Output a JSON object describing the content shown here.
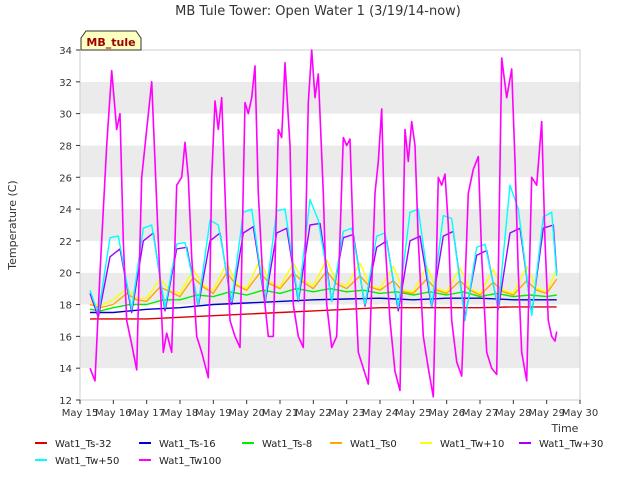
{
  "chart_data": {
    "type": "line",
    "title": "MB Tule Tower: Open Water 1 (3/19/14-now)",
    "xlabel": "Time",
    "ylabel": "Temperature (C)",
    "xlim": [
      15,
      30
    ],
    "ylim": [
      12,
      34
    ],
    "xticks": [
      15,
      16,
      17,
      18,
      19,
      20,
      21,
      22,
      23,
      24,
      25,
      26,
      27,
      28,
      29,
      30
    ],
    "xtick_labels": [
      "May 15",
      "May 16",
      "May 17",
      "May 18",
      "May 19",
      "May 20",
      "May 21",
      "May 22",
      "May 23",
      "May 24",
      "May 25",
      "May 26",
      "May 27",
      "May 28",
      "May 29",
      "May 30"
    ],
    "yticks": [
      12,
      14,
      16,
      18,
      20,
      22,
      24,
      26,
      28,
      30,
      32,
      34
    ],
    "ytick_labels": [
      "12",
      "14",
      "16",
      "18",
      "20",
      "22",
      "24",
      "26",
      "28",
      "30",
      "32",
      "34"
    ],
    "grid": "horizontal bands",
    "station_label": "MB_tule",
    "legend_position": "bottom",
    "series": [
      {
        "name": "Wat1_Ts-32",
        "color": "#dd0000",
        "x": [
          15.3,
          16,
          17,
          18,
          19,
          20,
          21,
          22,
          23,
          24,
          25,
          26,
          27,
          28,
          29,
          29.3
        ],
        "values": [
          17.1,
          17.1,
          17.1,
          17.2,
          17.3,
          17.4,
          17.5,
          17.6,
          17.7,
          17.8,
          17.8,
          17.8,
          17.8,
          17.85,
          17.85,
          17.85
        ]
      },
      {
        "name": "Wat1_Ts-16",
        "color": "#0000cc",
        "x": [
          15.3,
          16,
          17,
          18,
          19,
          20,
          21,
          22,
          23,
          24,
          25,
          26,
          27,
          28,
          29,
          29.3
        ],
        "values": [
          17.5,
          17.5,
          17.7,
          17.8,
          18.0,
          18.1,
          18.2,
          18.3,
          18.35,
          18.4,
          18.3,
          18.4,
          18.4,
          18.3,
          18.3,
          18.3
        ]
      },
      {
        "name": "Wat1_Ts-8",
        "color": "#00ee00",
        "x": [
          15.3,
          15.6,
          16,
          16.5,
          17,
          17.5,
          18,
          18.5,
          19,
          19.5,
          20,
          20.5,
          21,
          21.5,
          22,
          22.5,
          23,
          23.5,
          24,
          24.5,
          25,
          25.5,
          26,
          26.5,
          27,
          27.5,
          28,
          28.5,
          29,
          29.3
        ],
        "values": [
          17.7,
          17.6,
          17.8,
          18.0,
          18.0,
          18.3,
          18.3,
          18.6,
          18.5,
          18.8,
          18.6,
          18.9,
          18.7,
          19.0,
          18.8,
          19.0,
          18.8,
          18.9,
          18.7,
          18.8,
          18.6,
          18.8,
          18.6,
          18.8,
          18.5,
          18.7,
          18.5,
          18.6,
          18.5,
          18.6
        ]
      },
      {
        "name": "Wat1_Ts0",
        "color": "#ffa500",
        "x": [
          15.3,
          15.6,
          16,
          16.4,
          16.7,
          17,
          17.4,
          17.7,
          18,
          18.4,
          18.7,
          19,
          19.4,
          19.7,
          20,
          20.4,
          20.7,
          21,
          21.4,
          21.7,
          22,
          22.4,
          22.7,
          23,
          23.4,
          23.7,
          24,
          24.4,
          24.7,
          25,
          25.4,
          25.7,
          26,
          26.4,
          26.7,
          27,
          27.4,
          27.7,
          28,
          28.4,
          28.7,
          29,
          29.3
        ],
        "values": [
          18.0,
          17.8,
          18.0,
          18.7,
          18.3,
          18.2,
          19.1,
          18.8,
          18.5,
          19.7,
          19.1,
          18.7,
          20.0,
          19.2,
          18.9,
          20.0,
          19.3,
          19.0,
          20.0,
          19.4,
          19.0,
          20.1,
          19.3,
          19.0,
          19.8,
          19.1,
          18.9,
          19.5,
          18.8,
          18.7,
          19.6,
          18.9,
          18.7,
          19.5,
          18.9,
          18.6,
          19.4,
          18.8,
          18.6,
          19.5,
          18.9,
          18.7,
          19.6
        ]
      },
      {
        "name": "Wat1_Tw+10",
        "color": "#ffff00",
        "x": [
          15.3,
          15.6,
          16,
          16.4,
          16.7,
          17,
          17.4,
          17.7,
          18,
          18.4,
          18.7,
          19,
          19.4,
          19.7,
          20,
          20.4,
          20.7,
          21,
          21.4,
          21.7,
          22,
          22.4,
          22.7,
          23,
          23.4,
          23.7,
          24,
          24.4,
          24.7,
          25,
          25.4,
          25.7,
          26,
          26.4,
          26.7,
          27,
          27.4,
          27.7,
          28,
          28.4,
          28.7,
          29,
          29.3
        ],
        "values": [
          18.2,
          17.9,
          18.3,
          19.0,
          18.4,
          18.4,
          19.6,
          18.9,
          18.7,
          20.2,
          19.2,
          18.9,
          20.6,
          19.3,
          19.0,
          20.8,
          19.4,
          19.1,
          20.6,
          19.5,
          19.2,
          20.8,
          19.4,
          19.2,
          20.6,
          19.2,
          19.0,
          20.4,
          18.9,
          18.8,
          20.4,
          19.0,
          18.8,
          20.3,
          19.0,
          18.7,
          20.2,
          18.9,
          18.7,
          20.4,
          19.0,
          18.8,
          20.2
        ]
      },
      {
        "name": "Wat1_Tw+30",
        "color": "#a000ff",
        "x": [
          15.3,
          15.55,
          15.9,
          16.2,
          16.55,
          16.9,
          17.2,
          17.55,
          17.9,
          18.2,
          18.55,
          18.9,
          19.2,
          19.55,
          19.9,
          20.2,
          20.55,
          20.9,
          21.2,
          21.55,
          21.9,
          22.2,
          22.55,
          22.9,
          23.2,
          23.55,
          23.9,
          24.2,
          24.55,
          24.9,
          25.2,
          25.55,
          25.9,
          26.2,
          26.55,
          26.9,
          27.2,
          27.55,
          27.9,
          28.2,
          28.55,
          28.9,
          29.2,
          29.3
        ],
        "values": [
          18.7,
          17.2,
          21.0,
          21.5,
          17.5,
          22.0,
          22.5,
          17.6,
          21.5,
          21.6,
          17.9,
          22.0,
          22.5,
          18.0,
          22.5,
          22.9,
          18.1,
          22.5,
          22.8,
          18.2,
          23.0,
          23.1,
          18.2,
          22.2,
          22.4,
          17.9,
          21.6,
          22.0,
          17.6,
          22.0,
          22.3,
          17.8,
          22.3,
          22.6,
          17.2,
          21.1,
          21.4,
          17.7,
          22.5,
          22.8,
          17.4,
          22.8,
          23.0,
          20.0
        ]
      },
      {
        "name": "Wat1_Tw+50",
        "color": "#00ffff",
        "x": [
          15.3,
          15.55,
          15.9,
          16.15,
          16.55,
          16.9,
          17.15,
          17.55,
          17.9,
          18.15,
          18.55,
          18.9,
          19.15,
          19.55,
          19.9,
          20.15,
          20.55,
          20.9,
          21.15,
          21.55,
          21.9,
          22.15,
          22.55,
          22.9,
          23.15,
          23.55,
          23.9,
          24.15,
          24.55,
          24.9,
          25.15,
          25.55,
          25.9,
          26.15,
          26.55,
          26.9,
          27.15,
          27.55,
          27.9,
          28.15,
          28.55,
          28.9,
          29.15,
          29.3
        ],
        "values": [
          18.9,
          17.4,
          22.2,
          22.3,
          17.7,
          22.8,
          23.0,
          17.8,
          21.8,
          21.9,
          18.0,
          23.3,
          23.0,
          18.2,
          23.8,
          24.0,
          18.2,
          23.9,
          24.0,
          18.3,
          24.6,
          23.3,
          18.2,
          22.6,
          22.8,
          18.0,
          22.3,
          22.5,
          17.8,
          23.8,
          24.0,
          17.9,
          23.6,
          23.4,
          17.0,
          21.6,
          21.8,
          17.8,
          25.5,
          24.0,
          17.3,
          23.5,
          23.8,
          19.8
        ]
      },
      {
        "name": "Wat1_Tw100",
        "color": "#ff00ff",
        "x": [
          15.3,
          15.45,
          15.6,
          15.8,
          15.95,
          16.1,
          16.2,
          16.3,
          16.4,
          16.55,
          16.7,
          16.85,
          17.0,
          17.15,
          17.25,
          17.35,
          17.5,
          17.6,
          17.75,
          17.9,
          18.05,
          18.15,
          18.25,
          18.35,
          18.5,
          18.65,
          18.85,
          18.95,
          19.05,
          19.15,
          19.25,
          19.4,
          19.5,
          19.65,
          19.8,
          19.95,
          20.05,
          20.15,
          20.25,
          20.35,
          20.5,
          20.65,
          20.8,
          20.95,
          21.05,
          21.15,
          21.3,
          21.4,
          21.55,
          21.7,
          21.85,
          21.95,
          22.05,
          22.15,
          22.3,
          22.4,
          22.55,
          22.7,
          22.9,
          23.0,
          23.1,
          23.2,
          23.35,
          23.5,
          23.65,
          23.85,
          23.95,
          24.05,
          24.15,
          24.3,
          24.45,
          24.6,
          24.75,
          24.85,
          24.95,
          25.05,
          25.15,
          25.3,
          25.45,
          25.6,
          25.75,
          25.85,
          25.95,
          26.05,
          26.15,
          26.3,
          26.45,
          26.65,
          26.8,
          26.95,
          27.05,
          27.2,
          27.35,
          27.5,
          27.65,
          27.8,
          27.95,
          28.05,
          28.15,
          28.25,
          28.4,
          28.55,
          28.7,
          28.85,
          28.95,
          29.05,
          29.15,
          29.25,
          29.3
        ],
        "values": [
          14.0,
          13.2,
          20.0,
          28.0,
          32.7,
          29.0,
          30.0,
          22.0,
          17.0,
          15.5,
          13.9,
          26.0,
          29.0,
          32.0,
          27.0,
          22.0,
          15.0,
          16.2,
          15.0,
          25.5,
          26.0,
          28.2,
          26.0,
          21.0,
          16.0,
          15.0,
          13.4,
          26.0,
          30.8,
          29.0,
          31.0,
          22.0,
          17.0,
          16.0,
          15.3,
          30.7,
          30.0,
          31.0,
          33.0,
          25.0,
          19.0,
          16.0,
          16.0,
          29.0,
          28.5,
          33.2,
          28.0,
          18.0,
          16.0,
          15.3,
          30.7,
          34.0,
          31.0,
          32.5,
          25.0,
          18.0,
          15.3,
          16.0,
          28.5,
          28.0,
          28.4,
          22.0,
          15.0,
          14.0,
          13.0,
          25.0,
          27.0,
          30.3,
          22.0,
          17.0,
          13.8,
          12.6,
          29.0,
          27.0,
          29.5,
          28.0,
          22.0,
          16.0,
          14.0,
          12.2,
          26.0,
          25.5,
          26.2,
          23.0,
          17.0,
          14.4,
          13.5,
          25.0,
          26.5,
          27.3,
          21.0,
          15.0,
          14.0,
          13.6,
          33.5,
          31.0,
          32.8,
          27.0,
          20.0,
          15.0,
          13.2,
          26.0,
          25.5,
          29.5,
          22.0,
          17.0,
          16.0,
          15.7,
          16.3
        ]
      }
    ]
  }
}
